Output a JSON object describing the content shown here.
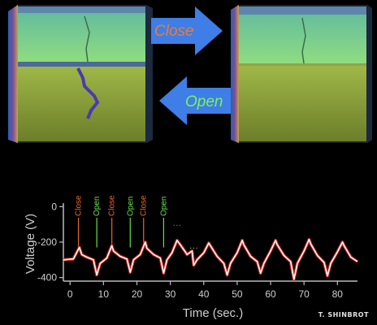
{
  "scene": {
    "close_label": "Close",
    "open_label": "Open",
    "colors": {
      "arrow": "#3e7ee6",
      "close_text": "#f07a36",
      "open_text": "#7cf25a",
      "block_top": "#7bd08a",
      "block_bottom": "#8a9a3a"
    }
  },
  "chart_data": {
    "type": "line",
    "xlabel": "Time (sec.)",
    "ylabel": "Voltage (V)",
    "xlim": [
      -2,
      86
    ],
    "ylim": [
      -420,
      20
    ],
    "xticks": [
      0,
      10,
      20,
      30,
      40,
      50,
      60,
      70,
      80
    ],
    "yticks": [
      0,
      -200,
      -400
    ],
    "grid": false,
    "series": [
      {
        "color": "#ffffff",
        "values": [
          [
            -2,
            -300
          ],
          [
            1,
            -295
          ],
          [
            2.8,
            -230
          ],
          [
            3.5,
            -270
          ],
          [
            5,
            -285
          ],
          [
            7,
            -300
          ],
          [
            8,
            -385
          ],
          [
            9,
            -320
          ],
          [
            11,
            -290
          ],
          [
            12.5,
            -220
          ],
          [
            13,
            -250
          ],
          [
            15,
            -280
          ],
          [
            17,
            -295
          ],
          [
            18,
            -370
          ],
          [
            19,
            -300
          ],
          [
            21,
            -270
          ],
          [
            22.5,
            -200
          ],
          [
            23,
            -235
          ],
          [
            25,
            -270
          ],
          [
            27,
            -290
          ],
          [
            28,
            -375
          ],
          [
            29,
            -300
          ],
          [
            30.5,
            -260
          ],
          [
            32,
            -190
          ],
          [
            33,
            -215
          ],
          [
            34.5,
            -255
          ],
          [
            35,
            -270
          ],
          [
            36.5,
            -250
          ],
          [
            37,
            -330
          ],
          [
            38,
            -300
          ],
          [
            40,
            -260
          ],
          [
            41.5,
            -205
          ],
          [
            42,
            -220
          ],
          [
            44,
            -280
          ],
          [
            46,
            -320
          ],
          [
            47,
            -385
          ],
          [
            48,
            -320
          ],
          [
            50,
            -260
          ],
          [
            51.5,
            -190
          ],
          [
            52,
            -215
          ],
          [
            54,
            -280
          ],
          [
            56,
            -310
          ],
          [
            57,
            -375
          ],
          [
            58,
            -320
          ],
          [
            60,
            -250
          ],
          [
            61.5,
            -190
          ],
          [
            62,
            -215
          ],
          [
            64,
            -275
          ],
          [
            66,
            -310
          ],
          [
            67,
            -410
          ],
          [
            68,
            -320
          ],
          [
            70,
            -250
          ],
          [
            71.5,
            -185
          ],
          [
            72,
            -210
          ],
          [
            74,
            -275
          ],
          [
            76,
            -315
          ],
          [
            77,
            -390
          ],
          [
            78,
            -320
          ],
          [
            80,
            -255
          ],
          [
            81.5,
            -200
          ],
          [
            82,
            -220
          ],
          [
            84,
            -285
          ],
          [
            86,
            -310
          ]
        ]
      }
    ],
    "annotations": [
      {
        "label": "Close",
        "x": 2.5,
        "color": "#e8652a"
      },
      {
        "label": "Open",
        "x": 8,
        "color": "#6be04a"
      },
      {
        "label": "Close",
        "x": 12.5,
        "color": "#e8652a"
      },
      {
        "label": "Open",
        "x": 18,
        "color": "#6be04a"
      },
      {
        "label": "Close",
        "x": 22,
        "color": "#e8652a"
      },
      {
        "label": "Open",
        "x": 28,
        "color": "#6be04a"
      },
      {
        "label": "···",
        "x": 32,
        "color": "#e8652a"
      },
      {
        "label": "···",
        "x": 37,
        "color": "#6be04a"
      }
    ]
  },
  "credit": "T. SHINBROT"
}
